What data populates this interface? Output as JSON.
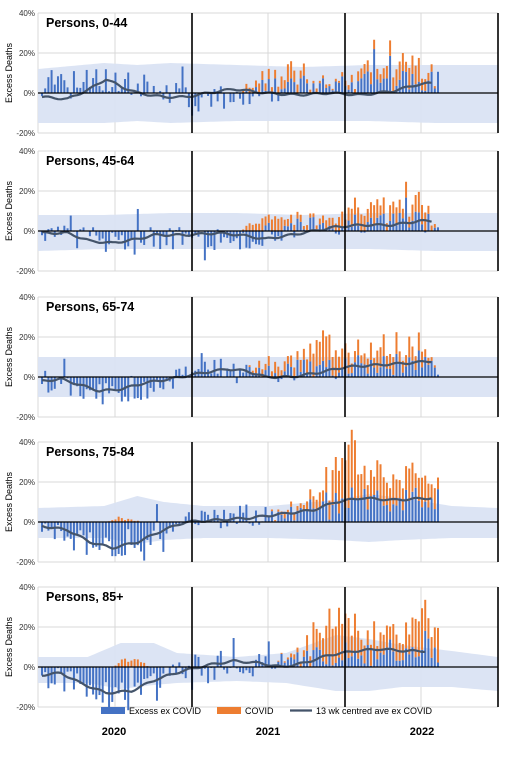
{
  "chart_data": [
    {
      "type": "bar",
      "title": "Persons, 0-44",
      "ylabel": "Excess Deaths",
      "ylim": [
        -20,
        40
      ],
      "yticks": [
        "-20%",
        "0%",
        "20%",
        "40%"
      ],
      "weeks": 140,
      "band": [
        [
          0,
          -15,
          12
        ],
        [
          20,
          -15,
          15
        ],
        [
          30,
          -14,
          14
        ],
        [
          40,
          -15,
          15
        ],
        [
          60,
          -14,
          14
        ],
        [
          80,
          -14,
          13
        ],
        [
          100,
          -14,
          14
        ],
        [
          120,
          -15,
          14
        ],
        [
          139,
          -15,
          14
        ]
      ],
      "trend": [
        [
          0,
          -2
        ],
        [
          8,
          -3
        ],
        [
          15,
          2
        ],
        [
          20,
          7
        ],
        [
          25,
          3
        ],
        [
          30,
          0
        ],
        [
          38,
          -2
        ],
        [
          45,
          -2
        ],
        [
          52,
          0
        ],
        [
          60,
          2
        ],
        [
          70,
          0
        ],
        [
          80,
          -1
        ],
        [
          90,
          0
        ],
        [
          100,
          -1
        ],
        [
          110,
          1
        ],
        [
          117,
          4
        ],
        [
          122,
          5
        ]
      ],
      "excess": [
        [
          0,
          8
        ],
        [
          25,
          6
        ],
        [
          50,
          -4
        ],
        [
          75,
          2
        ],
        [
          100,
          6
        ],
        [
          120,
          5
        ]
      ],
      "covid": [
        [
          0,
          0
        ],
        [
          62,
          0
        ],
        [
          64,
          3
        ],
        [
          72,
          4
        ],
        [
          79,
          8
        ],
        [
          84,
          2
        ],
        [
          92,
          1
        ],
        [
          98,
          3
        ],
        [
          104,
          7
        ],
        [
          110,
          6
        ],
        [
          118,
          9
        ],
        [
          124,
          0
        ]
      ]
    },
    {
      "type": "bar",
      "title": "Persons, 45-64",
      "ylabel": "Excess Deaths",
      "ylim": [
        -20,
        40
      ],
      "yticks": [
        "-20%",
        "0%",
        "20%",
        "40%"
      ],
      "weeks": 140,
      "band": [
        [
          0,
          -10,
          8
        ],
        [
          20,
          -9,
          8
        ],
        [
          40,
          -9,
          9
        ],
        [
          60,
          -9,
          9
        ],
        [
          80,
          -9,
          8
        ],
        [
          100,
          -9,
          9
        ],
        [
          120,
          -10,
          9
        ],
        [
          139,
          -10,
          9
        ]
      ],
      "trend": [
        [
          0,
          -1
        ],
        [
          8,
          -1
        ],
        [
          15,
          -5
        ],
        [
          22,
          -6
        ],
        [
          30,
          -4
        ],
        [
          35,
          -2
        ],
        [
          45,
          -2
        ],
        [
          55,
          -1
        ],
        [
          62,
          -2
        ],
        [
          70,
          -4
        ],
        [
          78,
          -2
        ],
        [
          85,
          0
        ],
        [
          92,
          2
        ],
        [
          100,
          3
        ],
        [
          110,
          3
        ],
        [
          118,
          5
        ],
        [
          122,
          5
        ]
      ],
      "excess": [
        [
          0,
          0
        ],
        [
          20,
          -5
        ],
        [
          40,
          -3
        ],
        [
          60,
          -5
        ],
        [
          80,
          1
        ],
        [
          100,
          3
        ],
        [
          120,
          4
        ]
      ],
      "covid": [
        [
          0,
          0
        ],
        [
          62,
          0
        ],
        [
          66,
          4
        ],
        [
          74,
          6
        ],
        [
          80,
          3
        ],
        [
          86,
          2
        ],
        [
          93,
          6
        ],
        [
          102,
          8
        ],
        [
          110,
          6
        ],
        [
          118,
          10
        ],
        [
          124,
          0
        ]
      ]
    },
    {
      "type": "bar",
      "title": "Persons, 65-74",
      "ylabel": "Excess Deaths",
      "ylim": [
        -20,
        40
      ],
      "yticks": [
        "-20%",
        "0%",
        "20%",
        "40%"
      ],
      "weeks": 140,
      "band": [
        [
          0,
          -10,
          10
        ],
        [
          20,
          -10,
          10
        ],
        [
          40,
          -10,
          10
        ],
        [
          60,
          -10,
          10
        ],
        [
          80,
          -10,
          10
        ],
        [
          100,
          -10,
          10
        ],
        [
          120,
          -10,
          10
        ],
        [
          139,
          -10,
          10
        ]
      ],
      "trend": [
        [
          0,
          -2
        ],
        [
          6,
          -1
        ],
        [
          12,
          -4
        ],
        [
          18,
          -7
        ],
        [
          25,
          -6
        ],
        [
          32,
          -3
        ],
        [
          40,
          -1
        ],
        [
          50,
          2
        ],
        [
          58,
          4
        ],
        [
          64,
          3
        ],
        [
          70,
          0
        ],
        [
          78,
          0
        ],
        [
          86,
          2
        ],
        [
          95,
          5
        ],
        [
          105,
          6
        ],
        [
          115,
          7
        ],
        [
          122,
          8
        ]
      ],
      "excess": [
        [
          0,
          -2
        ],
        [
          15,
          -8
        ],
        [
          25,
          -10
        ],
        [
          40,
          -1
        ],
        [
          55,
          4
        ],
        [
          70,
          2
        ],
        [
          85,
          3
        ],
        [
          100,
          6
        ],
        [
          120,
          7
        ]
      ],
      "covid": [
        [
          0,
          0
        ],
        [
          64,
          0
        ],
        [
          68,
          3
        ],
        [
          76,
          5
        ],
        [
          82,
          5
        ],
        [
          88,
          12
        ],
        [
          94,
          9
        ],
        [
          100,
          5
        ],
        [
          108,
          10
        ],
        [
          116,
          9
        ],
        [
          124,
          0
        ]
      ]
    },
    {
      "type": "bar",
      "title": "Persons, 75-84",
      "ylabel": "Excess Deaths",
      "ylim": [
        -20,
        40
      ],
      "yticks": [
        "-20%",
        "0%",
        "20%",
        "40%"
      ],
      "weeks": 140,
      "band": [
        [
          0,
          -8,
          7
        ],
        [
          20,
          -8,
          8
        ],
        [
          30,
          -11,
          13
        ],
        [
          38,
          -9,
          10
        ],
        [
          50,
          -8,
          8
        ],
        [
          70,
          -8,
          8
        ],
        [
          90,
          -9,
          11
        ],
        [
          100,
          -10,
          14
        ],
        [
          110,
          -9,
          12
        ],
        [
          125,
          -8,
          8
        ],
        [
          139,
          -8,
          7
        ]
      ],
      "trend": [
        [
          0,
          -2
        ],
        [
          8,
          -4
        ],
        [
          15,
          -10
        ],
        [
          22,
          -13
        ],
        [
          30,
          -10
        ],
        [
          38,
          -4
        ],
        [
          45,
          0
        ],
        [
          55,
          1
        ],
        [
          65,
          2
        ],
        [
          75,
          4
        ],
        [
          85,
          6
        ],
        [
          92,
          10
        ],
        [
          100,
          12
        ],
        [
          110,
          11
        ],
        [
          122,
          12
        ]
      ],
      "excess": [
        [
          0,
          -4
        ],
        [
          15,
          -11
        ],
        [
          25,
          -15
        ],
        [
          35,
          -6
        ],
        [
          45,
          0
        ],
        [
          60,
          2
        ],
        [
          80,
          6
        ],
        [
          92,
          10
        ],
        [
          100,
          12
        ],
        [
          110,
          11
        ],
        [
          122,
          12
        ]
      ],
      "covid": [
        [
          0,
          0
        ],
        [
          20,
          0
        ],
        [
          24,
          2
        ],
        [
          28,
          1
        ],
        [
          32,
          0
        ],
        [
          70,
          0
        ],
        [
          76,
          2
        ],
        [
          82,
          4
        ],
        [
          88,
          8
        ],
        [
          92,
          20
        ],
        [
          96,
          25
        ],
        [
          102,
          14
        ],
        [
          108,
          13
        ],
        [
          114,
          12
        ],
        [
          120,
          11
        ],
        [
          124,
          8
        ]
      ]
    },
    {
      "type": "bar",
      "title": "Persons, 85+",
      "ylabel": "Excess Deaths",
      "ylim": [
        -20,
        40
      ],
      "yticks": [
        "-20%",
        "0%",
        "20%",
        "40%"
      ],
      "weeks": 140,
      "band": [
        [
          0,
          -8,
          5
        ],
        [
          15,
          -8,
          5
        ],
        [
          25,
          -11,
          12
        ],
        [
          35,
          -9,
          12
        ],
        [
          42,
          -8,
          7
        ],
        [
          60,
          -7,
          5
        ],
        [
          75,
          -8,
          7
        ],
        [
          90,
          -12,
          16
        ],
        [
          100,
          -12,
          14
        ],
        [
          110,
          -10,
          11
        ],
        [
          125,
          -10,
          8
        ],
        [
          139,
          -12,
          5
        ]
      ],
      "trend": [
        [
          0,
          -4
        ],
        [
          6,
          -3
        ],
        [
          12,
          -8
        ],
        [
          20,
          -13
        ],
        [
          28,
          -12
        ],
        [
          36,
          -6
        ],
        [
          44,
          -2
        ],
        [
          52,
          1
        ],
        [
          60,
          3
        ],
        [
          68,
          2
        ],
        [
          75,
          0
        ],
        [
          82,
          2
        ],
        [
          90,
          6
        ],
        [
          98,
          8
        ],
        [
          106,
          9
        ],
        [
          114,
          8
        ],
        [
          120,
          8
        ]
      ],
      "excess": [
        [
          0,
          -4
        ],
        [
          12,
          -9
        ],
        [
          22,
          -14
        ],
        [
          32,
          -8
        ],
        [
          42,
          -2
        ],
        [
          55,
          3
        ],
        [
          70,
          0
        ],
        [
          85,
          4
        ],
        [
          95,
          7
        ],
        [
          105,
          8
        ],
        [
          120,
          8
        ]
      ],
      "covid": [
        [
          0,
          0
        ],
        [
          22,
          0
        ],
        [
          26,
          4
        ],
        [
          30,
          3
        ],
        [
          34,
          0
        ],
        [
          70,
          0
        ],
        [
          76,
          1
        ],
        [
          82,
          4
        ],
        [
          88,
          16
        ],
        [
          92,
          20
        ],
        [
          96,
          18
        ],
        [
          102,
          10
        ],
        [
          108,
          10
        ],
        [
          114,
          14
        ],
        [
          120,
          17
        ],
        [
          124,
          14
        ]
      ]
    }
  ],
  "legend": {
    "excess_label": "Excess ex COVID",
    "covid_label": "COVID",
    "trend_label": "13 wk centred ave ex COVID"
  },
  "years": [
    "2020",
    "2021",
    "2022"
  ],
  "colors": {
    "excess": "#4472c4",
    "covid": "#ed7d31",
    "trend": "#44546a",
    "band": "#dae3f3"
  }
}
